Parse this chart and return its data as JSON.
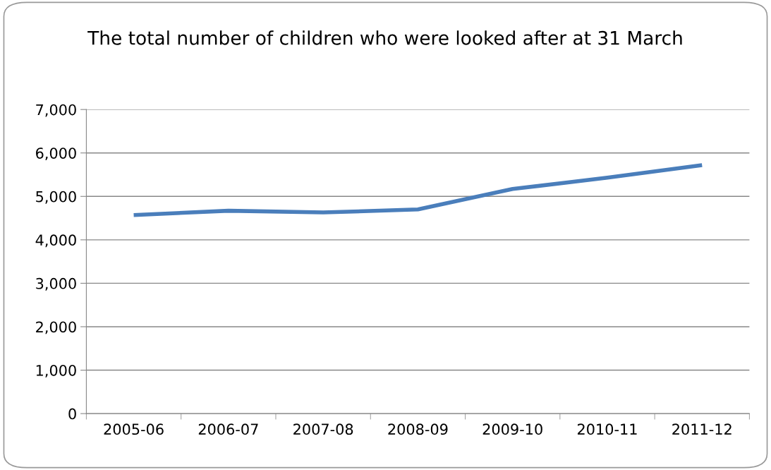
{
  "chart_data": {
    "type": "line",
    "title": "The total number of children who were looked after at 31 March",
    "categories": [
      "2005-06",
      "2006-07",
      "2007-08",
      "2008-09",
      "2009-10",
      "2010-11",
      "2011-12"
    ],
    "series": [
      {
        "color": "#4a7ebb",
        "values": [
          4570,
          4670,
          4630,
          4700,
          5170,
          5430,
          5720
        ]
      }
    ],
    "ylim": [
      0,
      7000
    ],
    "yticks": [
      {
        "value": 0,
        "label": "0"
      },
      {
        "value": 1000,
        "label": "1,000"
      },
      {
        "value": 2000,
        "label": "2,000"
      },
      {
        "value": 3000,
        "label": "3,000"
      },
      {
        "value": 4000,
        "label": "4,000"
      },
      {
        "value": 5000,
        "label": "5,000"
      },
      {
        "value": 6000,
        "label": "6,000"
      },
      {
        "value": 7000,
        "label": "7,000"
      }
    ],
    "grid": "y",
    "legend": false
  }
}
